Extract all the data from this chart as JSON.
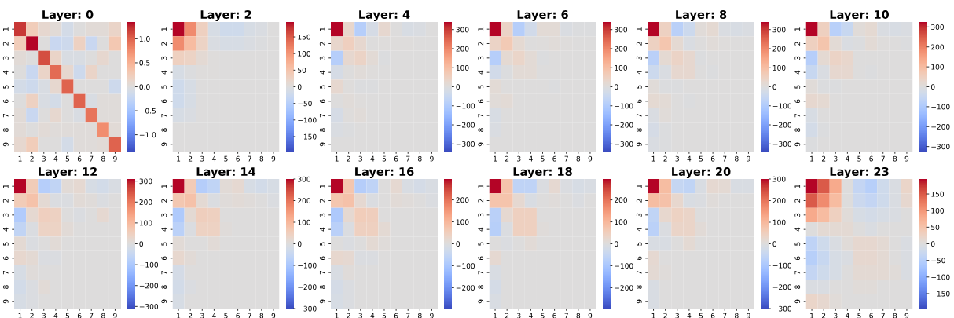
{
  "chart_data": [
    {
      "type": "heatmap",
      "title": "Layer: 0",
      "categories": [
        "1",
        "2",
        "3",
        "4",
        "5",
        "6",
        "7",
        "8",
        "9"
      ],
      "y_categories": [
        "1",
        "2",
        "3",
        "4",
        "5",
        "6",
        "7",
        "8",
        "9"
      ],
      "cells": [
        [
          1.2,
          0.25,
          0.1,
          0.05,
          -0.1,
          0,
          0.05,
          0.05,
          0.15
        ],
        [
          0.25,
          1.35,
          0,
          -0.2,
          -0.15,
          0.2,
          -0.2,
          0,
          0.3
        ],
        [
          0.05,
          0,
          1.1,
          0.15,
          -0.05,
          -0.05,
          0,
          0.1,
          0
        ],
        [
          0,
          -0.2,
          0.15,
          0.95,
          0.1,
          -0.15,
          0.15,
          0,
          0
        ],
        [
          -0.1,
          -0.15,
          -0.05,
          0.1,
          1.0,
          0,
          0,
          0,
          -0.15
        ],
        [
          0,
          0.2,
          -0.05,
          -0.1,
          0,
          1.0,
          -0.05,
          0.03,
          0.03
        ],
        [
          0.05,
          -0.2,
          0,
          0.1,
          0,
          -0.05,
          0.9,
          0.03,
          0.03
        ],
        [
          0.05,
          0,
          0.05,
          0.03,
          0.03,
          0.03,
          0.03,
          0.75,
          0.05
        ],
        [
          0.1,
          0.25,
          0,
          0,
          -0.1,
          0.03,
          0.03,
          0.05,
          1.0
        ]
      ],
      "clim": [
        -1.35,
        1.35
      ],
      "cticks": [
        {
          "value": -1.0,
          "label": "−1.0"
        },
        {
          "value": -0.5,
          "label": "−0.5"
        },
        {
          "value": 0.0,
          "label": "0.0"
        },
        {
          "value": 0.5,
          "label": "0.5"
        },
        {
          "value": 1.0,
          "label": "1.0"
        }
      ]
    },
    {
      "type": "heatmap",
      "title": "Layer: 2",
      "categories": [
        "1",
        "2",
        "3",
        "4",
        "5",
        "6",
        "7",
        "8",
        "9"
      ],
      "y_categories": [
        "1",
        "2",
        "3",
        "4",
        "5",
        "6",
        "7",
        "8",
        "9"
      ],
      "cells": [
        [
          195,
          110,
          30,
          -10,
          -20,
          -20,
          -10,
          -5,
          0
        ],
        [
          110,
          60,
          25,
          -5,
          -10,
          -10,
          -5,
          -3,
          0
        ],
        [
          30,
          25,
          10,
          3,
          0,
          0,
          0,
          0,
          0
        ],
        [
          -10,
          -3,
          2,
          2,
          0,
          0,
          0,
          0,
          0
        ],
        [
          -20,
          -10,
          0,
          0,
          0,
          0,
          0,
          0,
          0
        ],
        [
          -20,
          -10,
          0,
          0,
          0,
          0,
          0,
          0,
          0
        ],
        [
          -10,
          -5,
          0,
          0,
          0,
          0,
          0,
          0,
          0
        ],
        [
          0,
          0,
          0,
          0,
          0,
          0,
          0,
          0,
          0
        ],
        [
          0,
          0,
          0,
          0,
          0,
          0,
          0,
          0,
          0
        ]
      ],
      "clim": [
        -195,
        195
      ],
      "cticks": [
        {
          "value": -150,
          "label": "−150"
        },
        {
          "value": -100,
          "label": "−100"
        },
        {
          "value": -50,
          "label": "−50"
        },
        0,
        50,
        100,
        150
      ]
    },
    {
      "type": "heatmap",
      "title": "Layer: 4",
      "categories": [
        "1",
        "2",
        "3",
        "4",
        "5",
        "6",
        "7",
        "8",
        "9"
      ],
      "y_categories": [
        "1",
        "2",
        "3",
        "4",
        "5",
        "6",
        "7",
        "8",
        "9"
      ],
      "cells": [
        [
          340,
          30,
          -90,
          -20,
          25,
          0,
          -15,
          -10,
          0
        ],
        [
          30,
          55,
          25,
          0,
          5,
          5,
          5,
          0,
          0
        ],
        [
          -90,
          25,
          40,
          15,
          -5,
          0,
          0,
          0,
          0
        ],
        [
          -20,
          0,
          10,
          5,
          0,
          0,
          0,
          0,
          0
        ],
        [
          25,
          5,
          -5,
          -5,
          0,
          0,
          0,
          0,
          0
        ],
        [
          0,
          10,
          5,
          0,
          0,
          0,
          0,
          0,
          0
        ],
        [
          -20,
          5,
          10,
          0,
          0,
          0,
          0,
          0,
          0
        ],
        [
          -10,
          -5,
          0,
          0,
          0,
          0,
          0,
          0,
          0
        ],
        [
          0,
          0,
          0,
          0,
          0,
          0,
          0,
          0,
          0
        ]
      ],
      "clim": [
        -340,
        340
      ],
      "cticks": [
        {
          "value": -300,
          "label": "−300"
        },
        {
          "value": -200,
          "label": "−200"
        },
        {
          "value": -100,
          "label": "−100"
        },
        0,
        100,
        200,
        300
      ]
    },
    {
      "type": "heatmap",
      "title": "Layer: 6",
      "categories": [
        "1",
        "2",
        "3",
        "4",
        "5",
        "6",
        "7",
        "8",
        "9"
      ],
      "y_categories": [
        "1",
        "2",
        "3",
        "4",
        "5",
        "6",
        "7",
        "8",
        "9"
      ],
      "cells": [
        [
          340,
          40,
          -90,
          -30,
          15,
          15,
          -10,
          -5,
          -5
        ],
        [
          40,
          70,
          20,
          0,
          5,
          10,
          5,
          0,
          0
        ],
        [
          -90,
          20,
          35,
          15,
          -5,
          0,
          0,
          0,
          0
        ],
        [
          -30,
          -5,
          15,
          15,
          0,
          0,
          0,
          0,
          0
        ],
        [
          15,
          0,
          0,
          0,
          0,
          -3,
          0,
          0,
          0
        ],
        [
          10,
          15,
          0,
          0,
          0,
          0,
          0,
          0,
          0
        ],
        [
          -15,
          0,
          0,
          0,
          0,
          0,
          0,
          0,
          0
        ],
        [
          -10,
          0,
          0,
          0,
          0,
          0,
          0,
          0,
          0
        ],
        [
          0,
          0,
          0,
          0,
          0,
          0,
          0,
          0,
          0
        ]
      ],
      "clim": [
        -340,
        340
      ],
      "cticks": [
        {
          "value": -300,
          "label": "−300"
        },
        {
          "value": -200,
          "label": "−200"
        },
        {
          "value": -100,
          "label": "−100"
        },
        0,
        100,
        200,
        300
      ]
    },
    {
      "type": "heatmap",
      "title": "Layer: 8",
      "categories": [
        "1",
        "2",
        "3",
        "4",
        "5",
        "6",
        "7",
        "8",
        "9"
      ],
      "y_categories": [
        "1",
        "2",
        "3",
        "4",
        "5",
        "6",
        "7",
        "8",
        "9"
      ],
      "cells": [
        [
          340,
          50,
          -80,
          -40,
          10,
          20,
          -10,
          -15,
          -10
        ],
        [
          50,
          80,
          20,
          -10,
          0,
          10,
          5,
          0,
          0
        ],
        [
          -80,
          20,
          40,
          25,
          -5,
          0,
          0,
          0,
          0
        ],
        [
          -40,
          -10,
          25,
          25,
          0,
          -5,
          0,
          0,
          0
        ],
        [
          10,
          -5,
          -5,
          0,
          0,
          0,
          0,
          0,
          0
        ],
        [
          20,
          15,
          0,
          -5,
          0,
          0,
          0,
          0,
          0
        ],
        [
          -10,
          10,
          0,
          0,
          0,
          0,
          0,
          0,
          0
        ],
        [
          -20,
          -5,
          0,
          0,
          0,
          0,
          0,
          0,
          0
        ],
        [
          -10,
          -5,
          0,
          0,
          0,
          0,
          0,
          0,
          0
        ]
      ],
      "clim": [
        -340,
        340
      ],
      "cticks": [
        {
          "value": -300,
          "label": "−300"
        },
        {
          "value": -200,
          "label": "−200"
        },
        {
          "value": -100,
          "label": "−100"
        },
        0,
        100,
        200,
        300
      ]
    },
    {
      "type": "heatmap",
      "title": "Layer: 10",
      "categories": [
        "1",
        "2",
        "3",
        "4",
        "5",
        "6",
        "7",
        "8",
        "9"
      ],
      "y_categories": [
        "1",
        "2",
        "3",
        "4",
        "5",
        "6",
        "7",
        "8",
        "9"
      ],
      "cells": [
        [
          325,
          50,
          -80,
          -50,
          10,
          20,
          -10,
          -15,
          -10
        ],
        [
          50,
          80,
          15,
          -10,
          -5,
          15,
          5,
          0,
          -5
        ],
        [
          -85,
          20,
          40,
          30,
          0,
          0,
          0,
          0,
          0
        ],
        [
          -50,
          -10,
          25,
          25,
          0,
          -5,
          0,
          0,
          0
        ],
        [
          10,
          -5,
          -5,
          0,
          0,
          0,
          0,
          0,
          0
        ],
        [
          25,
          20,
          0,
          0,
          0,
          0,
          0,
          0,
          0
        ],
        [
          -15,
          0,
          0,
          0,
          0,
          0,
          0,
          0,
          0
        ],
        [
          -25,
          -5,
          0,
          0,
          0,
          0,
          0,
          0,
          0
        ],
        [
          -5,
          0,
          0,
          0,
          0,
          0,
          0,
          0,
          0
        ]
      ],
      "clim": [
        -325,
        325
      ],
      "cticks": [
        {
          "value": -300,
          "label": "−300"
        },
        {
          "value": -200,
          "label": "−200"
        },
        {
          "value": -100,
          "label": "−100"
        },
        0,
        100,
        200,
        300
      ]
    },
    {
      "type": "heatmap",
      "title": "Layer: 12",
      "categories": [
        "1",
        "2",
        "3",
        "4",
        "5",
        "6",
        "7",
        "8",
        "9"
      ],
      "y_categories": [
        "1",
        "2",
        "3",
        "4",
        "5",
        "6",
        "7",
        "8",
        "9"
      ],
      "cells": [
        [
          310,
          60,
          -80,
          -60,
          10,
          20,
          -15,
          -25,
          -10
        ],
        [
          60,
          80,
          15,
          -5,
          -5,
          10,
          5,
          -5,
          0
        ],
        [
          -90,
          20,
          50,
          45,
          0,
          -5,
          0,
          20,
          0
        ],
        [
          -60,
          -5,
          40,
          40,
          10,
          0,
          0,
          0,
          0
        ],
        [
          15,
          -5,
          0,
          10,
          0,
          0,
          0,
          0,
          0
        ],
        [
          25,
          15,
          -5,
          -5,
          0,
          0,
          0,
          0,
          0
        ],
        [
          -15,
          5,
          0,
          0,
          0,
          0,
          0,
          0,
          0
        ],
        [
          -25,
          -5,
          10,
          0,
          0,
          0,
          0,
          0,
          0
        ],
        [
          -15,
          -5,
          0,
          0,
          0,
          0,
          0,
          0,
          0
        ]
      ],
      "clim": [
        -310,
        310
      ],
      "cticks": [
        {
          "value": -300,
          "label": "−300"
        },
        {
          "value": -200,
          "label": "−200"
        },
        {
          "value": -100,
          "label": "−100"
        },
        0,
        100,
        200,
        300
      ]
    },
    {
      "type": "heatmap",
      "title": "Layer: 14",
      "categories": [
        "1",
        "2",
        "3",
        "4",
        "5",
        "6",
        "7",
        "8",
        "9"
      ],
      "y_categories": [
        "1",
        "2",
        "3",
        "4",
        "5",
        "6",
        "7",
        "8",
        "9"
      ],
      "cells": [
        [
          300,
          60,
          -80,
          -60,
          10,
          20,
          -15,
          -25,
          -15
        ],
        [
          70,
          80,
          15,
          -5,
          5,
          10,
          5,
          0,
          -5
        ],
        [
          -90,
          15,
          50,
          45,
          0,
          0,
          0,
          0,
          0
        ],
        [
          -70,
          -5,
          40,
          40,
          5,
          0,
          0,
          0,
          0
        ],
        [
          10,
          0,
          0,
          10,
          0,
          0,
          0,
          0,
          0
        ],
        [
          25,
          10,
          0,
          0,
          0,
          0,
          0,
          0,
          0
        ],
        [
          -20,
          0,
          0,
          0,
          0,
          0,
          0,
          0,
          0
        ],
        [
          -25,
          -5,
          0,
          0,
          0,
          0,
          0,
          0,
          0
        ],
        [
          -15,
          0,
          0,
          0,
          0,
          0,
          0,
          0,
          0
        ]
      ],
      "clim": [
        -300,
        300
      ],
      "cticks": [
        {
          "value": -300,
          "label": "−300"
        },
        {
          "value": -200,
          "label": "−200"
        },
        {
          "value": -100,
          "label": "−100"
        },
        0,
        100,
        200,
        300
      ]
    },
    {
      "type": "heatmap",
      "title": "Layer: 16",
      "categories": [
        "1",
        "2",
        "3",
        "4",
        "5",
        "6",
        "7",
        "8",
        "9"
      ],
      "y_categories": [
        "1",
        "2",
        "3",
        "4",
        "5",
        "6",
        "7",
        "8",
        "9"
      ],
      "cells": [
        [
          295,
          70,
          -80,
          -60,
          0,
          20,
          -10,
          -20,
          -10
        ],
        [
          70,
          80,
          20,
          -5,
          0,
          10,
          5,
          0,
          -5
        ],
        [
          -90,
          20,
          55,
          50,
          0,
          0,
          0,
          0,
          0
        ],
        [
          -70,
          -5,
          45,
          45,
          15,
          0,
          0,
          0,
          0
        ],
        [
          0,
          -5,
          0,
          15,
          5,
          0,
          0,
          0,
          0
        ],
        [
          25,
          20,
          -5,
          -5,
          0,
          0,
          0,
          0,
          0
        ],
        [
          -10,
          5,
          0,
          0,
          0,
          0,
          0,
          0,
          0
        ],
        [
          -20,
          -5,
          0,
          0,
          0,
          0,
          0,
          0,
          0
        ],
        [
          -15,
          -5,
          0,
          0,
          0,
          0,
          0,
          0,
          0
        ]
      ],
      "clim": [
        -295,
        295
      ],
      "cticks": [
        {
          "value": -200,
          "label": "−200"
        },
        {
          "value": -100,
          "label": "−100"
        },
        0,
        100,
        200
      ]
    },
    {
      "type": "heatmap",
      "title": "Layer: 18",
      "categories": [
        "1",
        "2",
        "3",
        "4",
        "5",
        "6",
        "7",
        "8",
        "9"
      ],
      "y_categories": [
        "1",
        "2",
        "3",
        "4",
        "5",
        "6",
        "7",
        "8",
        "9"
      ],
      "cells": [
        [
          295,
          75,
          -60,
          -60,
          -5,
          20,
          -5,
          -15,
          -10
        ],
        [
          75,
          75,
          20,
          -10,
          0,
          5,
          0,
          -5,
          0
        ],
        [
          -70,
          20,
          45,
          45,
          0,
          0,
          0,
          0,
          0
        ],
        [
          -75,
          -5,
          45,
          45,
          5,
          0,
          0,
          0,
          0
        ],
        [
          0,
          -5,
          0,
          10,
          0,
          0,
          0,
          0,
          0
        ],
        [
          20,
          0,
          0,
          0,
          0,
          0,
          0,
          0,
          0
        ],
        [
          -10,
          0,
          0,
          0,
          0,
          0,
          0,
          0,
          0
        ],
        [
          -20,
          0,
          0,
          0,
          0,
          0,
          0,
          0,
          0
        ],
        [
          -10,
          0,
          0,
          0,
          0,
          0,
          0,
          0,
          0
        ]
      ],
      "clim": [
        -295,
        295
      ],
      "cticks": [
        {
          "value": -200,
          "label": "−200"
        },
        {
          "value": -100,
          "label": "−100"
        },
        0,
        100,
        200
      ]
    },
    {
      "type": "heatmap",
      "title": "Layer: 20",
      "categories": [
        "1",
        "2",
        "3",
        "4",
        "5",
        "6",
        "7",
        "8",
        "9"
      ],
      "y_categories": [
        "1",
        "2",
        "3",
        "4",
        "5",
        "6",
        "7",
        "8",
        "9"
      ],
      "cells": [
        [
          300,
          90,
          -50,
          -60,
          -10,
          20,
          15,
          -10,
          -10
        ],
        [
          90,
          80,
          25,
          -10,
          -5,
          5,
          0,
          0,
          0
        ],
        [
          -60,
          25,
          40,
          35,
          0,
          0,
          0,
          0,
          0
        ],
        [
          -70,
          -5,
          35,
          35,
          10,
          0,
          0,
          0,
          0
        ],
        [
          -10,
          -10,
          0,
          15,
          0,
          0,
          0,
          0,
          0
        ],
        [
          20,
          0,
          0,
          0,
          0,
          0,
          0,
          0,
          0
        ],
        [
          15,
          5,
          0,
          0,
          0,
          0,
          0,
          0,
          0
        ],
        [
          -10,
          0,
          0,
          0,
          0,
          0,
          0,
          0,
          0
        ],
        [
          -10,
          0,
          0,
          0,
          0,
          0,
          0,
          0,
          0
        ]
      ],
      "clim": [
        -300,
        300
      ],
      "cticks": [
        {
          "value": -300,
          "label": "−300"
        },
        {
          "value": -200,
          "label": "−200"
        },
        {
          "value": -100,
          "label": "−100"
        },
        0,
        100,
        200,
        300
      ]
    },
    {
      "type": "heatmap",
      "title": "Layer: 23",
      "categories": [
        "1",
        "2",
        "3",
        "4",
        "5",
        "6",
        "7",
        "8",
        "9"
      ],
      "y_categories": [
        "1",
        "2",
        "3",
        "4",
        "5",
        "6",
        "7",
        "8",
        "9"
      ],
      "cells": [
        [
          195,
          150,
          80,
          0,
          -35,
          -50,
          -20,
          -5,
          20
        ],
        [
          150,
          110,
          60,
          0,
          -25,
          -35,
          -20,
          -5,
          15
        ],
        [
          80,
          60,
          30,
          5,
          -10,
          -15,
          -10,
          -5,
          0
        ],
        [
          0,
          10,
          10,
          10,
          0,
          -5,
          0,
          0,
          0
        ],
        [
          -40,
          -20,
          -5,
          5,
          15,
          15,
          10,
          0,
          -5
        ],
        [
          -50,
          -30,
          -10,
          -5,
          15,
          15,
          10,
          0,
          -5
        ],
        [
          -35,
          -20,
          -10,
          0,
          10,
          10,
          10,
          5,
          -5
        ],
        [
          -5,
          -5,
          0,
          0,
          5,
          5,
          0,
          0,
          0
        ],
        [
          20,
          15,
          5,
          0,
          0,
          0,
          0,
          0,
          0
        ]
      ],
      "clim": [
        -195,
        195
      ],
      "cticks": [
        {
          "value": -150,
          "label": "−150"
        },
        {
          "value": -100,
          "label": "−100"
        },
        {
          "value": -50,
          "label": "−50"
        },
        0,
        50,
        100,
        150
      ]
    }
  ]
}
